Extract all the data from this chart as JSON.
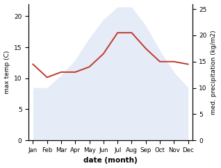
{
  "months": [
    "Jan",
    "Feb",
    "Mar",
    "Apr",
    "May",
    "Jun",
    "Jul",
    "Aug",
    "Sep",
    "Oct",
    "Nov",
    "Dec"
  ],
  "max_temp": [
    8.5,
    8.5,
    10.5,
    13.0,
    16.5,
    19.5,
    21.5,
    21.5,
    18.5,
    14.5,
    11.0,
    8.5
  ],
  "precipitation": [
    14.5,
    12.0,
    13.0,
    13.0,
    14.0,
    16.5,
    20.5,
    20.5,
    17.5,
    15.0,
    15.0,
    14.5
  ],
  "temp_color": "#c0392b",
  "precip_fill_color": "#c8d4f0",
  "temp_ylim": [
    0,
    22
  ],
  "precip_ylim": [
    0,
    26
  ],
  "temp_yticks": [
    0,
    5,
    10,
    15,
    20
  ],
  "precip_yticks": [
    0,
    5,
    10,
    15,
    20,
    25
  ],
  "xlabel": "date (month)",
  "ylabel_left": "max temp (C)",
  "ylabel_right": "med. precipitation (kg/m2)",
  "background_color": "#ffffff"
}
